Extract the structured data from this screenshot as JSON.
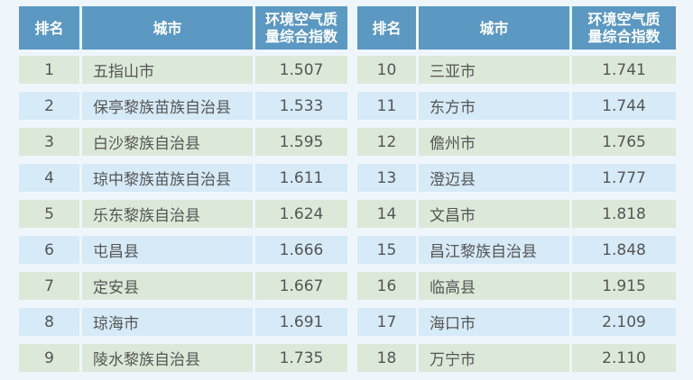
{
  "headers": {
    "rank": "排名",
    "city": "城市",
    "index": "环境空气质量综合指数"
  },
  "left": [
    {
      "rank": "1",
      "city": "五指山市",
      "value": "1.507"
    },
    {
      "rank": "2",
      "city": "保亭黎族苗族自治县",
      "value": "1.533"
    },
    {
      "rank": "3",
      "city": "白沙黎族自治县",
      "value": "1.595"
    },
    {
      "rank": "4",
      "city": "琼中黎族苗族自治县",
      "value": "1.611"
    },
    {
      "rank": "5",
      "city": "乐东黎族自治县",
      "value": "1.624"
    },
    {
      "rank": "6",
      "city": "屯昌县",
      "value": "1.666"
    },
    {
      "rank": "7",
      "city": "定安县",
      "value": "1.667"
    },
    {
      "rank": "8",
      "city": "琼海市",
      "value": "1.691"
    },
    {
      "rank": "9",
      "city": "陵水黎族自治县",
      "value": "1.735"
    }
  ],
  "right": [
    {
      "rank": "10",
      "city": "三亚市",
      "value": "1.741"
    },
    {
      "rank": "11",
      "city": "东方市",
      "value": "1.744"
    },
    {
      "rank": "12",
      "city": "儋州市",
      "value": "1.765"
    },
    {
      "rank": "13",
      "city": "澄迈县",
      "value": "1.777"
    },
    {
      "rank": "14",
      "city": "文昌市",
      "value": "1.818"
    },
    {
      "rank": "15",
      "city": "昌江黎族自治县",
      "value": "1.848"
    },
    {
      "rank": "16",
      "city": "临高县",
      "value": "1.915"
    },
    {
      "rank": "17",
      "city": "海口市",
      "value": "2.109"
    },
    {
      "rank": "18",
      "city": "万宁市",
      "value": "2.110"
    }
  ],
  "colors": {
    "header": "#5b98c2",
    "row_odd": "#dce9d8",
    "row_even": "#d6eaf7",
    "background": "#eef6fb"
  }
}
